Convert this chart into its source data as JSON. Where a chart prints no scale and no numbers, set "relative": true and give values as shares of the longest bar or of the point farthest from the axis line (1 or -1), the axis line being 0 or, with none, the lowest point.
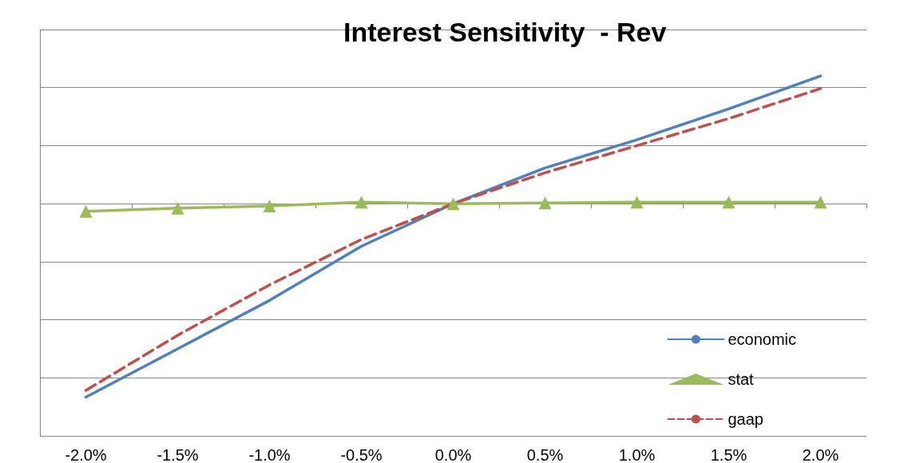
{
  "chart_data": {
    "type": "line",
    "title": "Interest Sensitivity  - Rev",
    "relative": true,
    "grid": "y",
    "legend": "bottom right",
    "categories": [
      "-2.0%",
      "-1.5%",
      "-1.0%",
      "-0.5%",
      "0.0%",
      "0.5%",
      "1.0%",
      "1.5%",
      "2.0%"
    ],
    "series": [
      {
        "name": "economic",
        "color": "#4f81bd",
        "marker": "none",
        "line_style": "solid",
        "values": [
          -1.0,
          -0.75,
          -0.5,
          -0.22,
          0,
          0.185,
          0.33,
          0.49,
          0.66
        ]
      },
      {
        "name": "stat",
        "color": "#9bbb59",
        "marker": "triangle",
        "line_style": "solid",
        "values": [
          -0.04,
          -0.023,
          -0.012,
          0.008,
          0,
          0.004,
          0.008,
          0.008,
          0.008
        ]
      },
      {
        "name": "gaap",
        "color": "#c0504d",
        "marker": "none",
        "line_style": "dashed",
        "values": [
          -0.965,
          -0.68,
          -0.42,
          -0.185,
          0,
          0.16,
          0.3,
          0.44,
          0.595
        ]
      }
    ]
  }
}
